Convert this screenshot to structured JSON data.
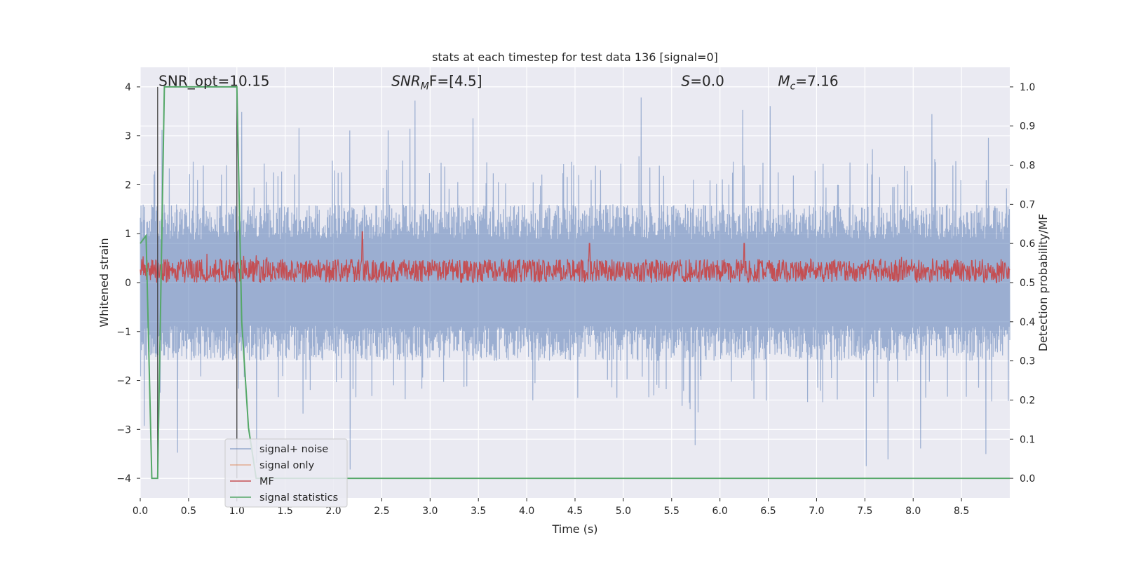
{
  "chart_data": {
    "type": "line",
    "title": "stats at each timestep for test data 136 [signal=0]",
    "xlabel": "Time (s)",
    "ylabel": "Whitened strain",
    "ylabel_right": "Detection probability/MF",
    "xlim": [
      0.0,
      9.0
    ],
    "ylim": [
      -4.4,
      4.4
    ],
    "ylim_right": [
      -0.05,
      1.05
    ],
    "x_ticks": [
      0.0,
      0.5,
      1.0,
      1.5,
      2.0,
      2.5,
      3.0,
      3.5,
      4.0,
      4.5,
      5.0,
      5.5,
      6.0,
      6.5,
      7.0,
      7.5,
      8.0,
      8.5
    ],
    "x_tick_labels": [
      "0.0",
      "0.5",
      "1.0",
      "1.5",
      "2.0",
      "2.5",
      "3.0",
      "3.5",
      "4.0",
      "4.5",
      "5.0",
      "5.5",
      "6.0",
      "6.5",
      "7.0",
      "7.5",
      "8.0",
      "8.5"
    ],
    "y_ticks": [
      4,
      3,
      2,
      1,
      0,
      -1,
      -2,
      -3,
      -4
    ],
    "y_tick_labels": [
      "4",
      "3",
      "2",
      "1",
      "0",
      "−1",
      "−2",
      "−3",
      "−4"
    ],
    "y_right_ticks": [
      1.0,
      0.9,
      0.8,
      0.7,
      0.6,
      0.5,
      0.4,
      0.3,
      0.2,
      0.1,
      0.0
    ],
    "y_right_tick_labels": [
      "1.0",
      "0.9",
      "0.8",
      "0.7",
      "0.6",
      "0.5",
      "0.4",
      "0.3",
      "0.2",
      "0.1",
      "0.0"
    ],
    "grid": true,
    "legend_position": "lower-left",
    "annotations": [
      {
        "text": "SNR_opt=10.15",
        "x": 0.19,
        "y": 4.05
      },
      {
        "main": "SNR",
        "sub": "M",
        "tail": "F=[4.5]",
        "x": 2.6,
        "y": 4.05
      },
      {
        "main": "S",
        "tail": "=0.0",
        "x": 5.6,
        "y": 4.05
      },
      {
        "main": "M",
        "sub": "c",
        "tail": "=7.16",
        "x": 6.6,
        "y": 4.05
      }
    ],
    "vlines": [
      {
        "x": 0.18,
        "ymin": -4.0,
        "ymax": 4.0
      },
      {
        "x": 1.0,
        "ymin": -4.0,
        "ymax": 4.0
      }
    ],
    "series": [
      {
        "name": "signal+ noise",
        "color": "#4c72b0",
        "axis": "left",
        "x_range": [
          0.0,
          9.0
        ],
        "approx_band": [
          -1.6,
          1.6
        ],
        "approx_peak_range": [
          -4.0,
          4.0
        ]
      },
      {
        "name": "signal only",
        "color": "#dd8452",
        "axis": "left",
        "values_note": ""
      },
      {
        "name": "MF",
        "color": "#c44e52",
        "axis": "right",
        "x_range": [
          0.0,
          9.0
        ],
        "approx_band": [
          0.5,
          0.56
        ],
        "notable_peaks": [
          [
            2.3,
            0.63
          ],
          [
            4.65,
            0.6
          ],
          [
            6.25,
            0.6
          ]
        ]
      },
      {
        "name": "signal statistics",
        "color": "#55a868",
        "axis": "right",
        "x": [
          0.0,
          0.06,
          0.12,
          0.18,
          0.25,
          1.0,
          1.05,
          1.12,
          1.2,
          1.5,
          2.0,
          3.0,
          4.0,
          5.0,
          6.0,
          7.0,
          8.0,
          9.0
        ],
        "values": [
          0.6,
          0.62,
          0.0,
          0.0,
          1.0,
          1.0,
          0.4,
          0.13,
          0.0,
          0.0,
          0.0,
          0.0,
          0.0,
          0.0,
          0.0,
          0.0,
          0.0,
          0.0
        ]
      }
    ]
  }
}
